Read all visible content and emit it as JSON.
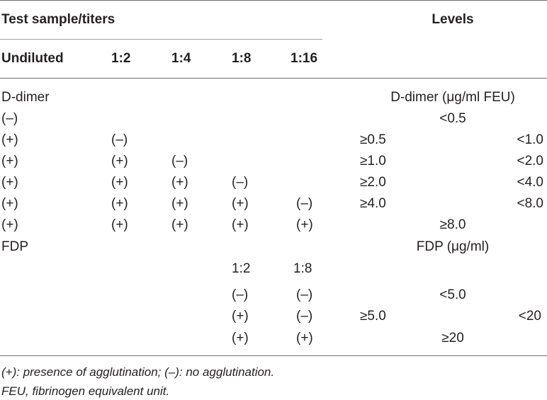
{
  "header": {
    "group_label": "Test sample/titers",
    "levels_label": "Levels",
    "columns": [
      "Undiluted",
      "1:2",
      "1:4",
      "1:8",
      "1:16"
    ]
  },
  "ddimer": {
    "section_label": "D-dimer",
    "levels_label": "D-dimer (μg/ml FEU)",
    "rows": [
      {
        "cells": [
          "(–)",
          "",
          "",
          "",
          ""
        ],
        "level": "<0.5"
      },
      {
        "cells": [
          "(+)",
          "(–)",
          "",
          "",
          ""
        ],
        "level_from": "≥0.5",
        "level_to": "<1.0"
      },
      {
        "cells": [
          "(+)",
          "(+)",
          "(–)",
          "",
          ""
        ],
        "level_from": "≥1.0",
        "level_to": "<2.0"
      },
      {
        "cells": [
          "(+)",
          "(+)",
          "(+)",
          "(–)",
          ""
        ],
        "level_from": "≥2.0",
        "level_to": "<4.0"
      },
      {
        "cells": [
          "(+)",
          "(+)",
          "(+)",
          "(+)",
          "(–)"
        ],
        "level_from": "≥4.0",
        "level_to": "<8.0"
      },
      {
        "cells": [
          "(+)",
          "(+)",
          "(+)",
          "(+)",
          "(+)"
        ],
        "level": "≥8.0"
      }
    ]
  },
  "fdp": {
    "section_label": "FDP",
    "levels_label": "FDP (μg/ml)",
    "sub_columns": [
      "1:2",
      "1:8"
    ],
    "rows": [
      {
        "cells": [
          "(–)",
          "(–)"
        ],
        "level": "<5.0"
      },
      {
        "cells": [
          "(+)",
          "(–)"
        ],
        "level_from": "≥5.0",
        "level_to": "<20"
      },
      {
        "cells": [
          "(+)",
          "(+)"
        ],
        "level": "≥20"
      }
    ]
  },
  "footnotes": [
    "(+): presence of agglutination; (–): no agglutination.",
    "FEU, fibrinogen equivalent unit."
  ]
}
